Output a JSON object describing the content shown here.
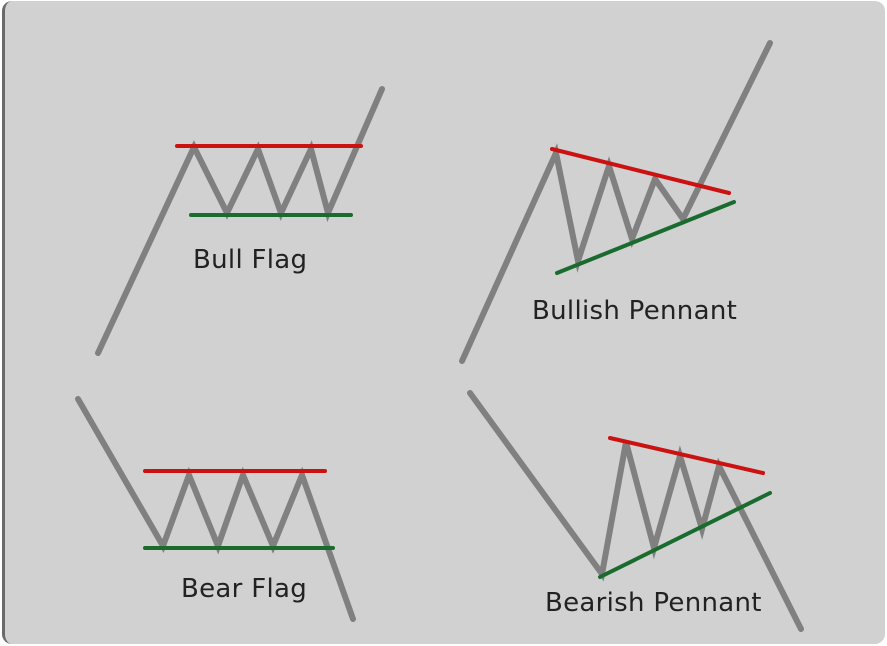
{
  "patterns": {
    "bull_flag": {
      "label": "Bull Flag"
    },
    "bullish_pennant": {
      "label": "Bullish Pennant"
    },
    "bear_flag": {
      "label": "Bear Flag"
    },
    "bearish_pennant": {
      "label": "Bearish Pennant"
    }
  },
  "colors": {
    "background": "#d1d1d1",
    "price_line": "#808080",
    "resistance": "#cc1111",
    "support": "#1a6b2e",
    "text": "#222222"
  }
}
